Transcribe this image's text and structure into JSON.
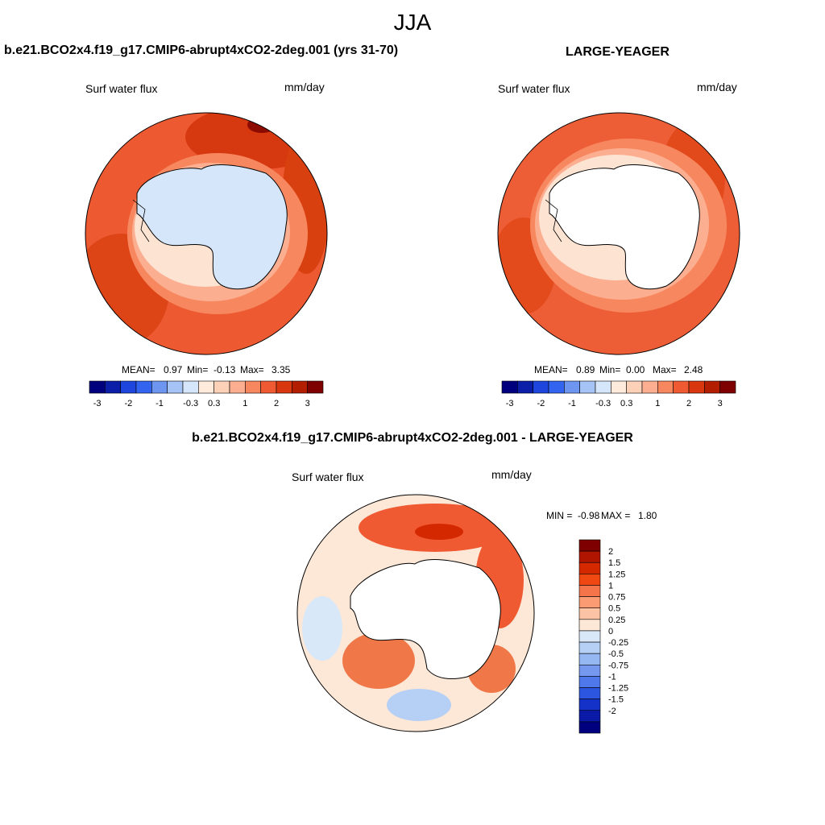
{
  "season": "JJA",
  "panels": [
    {
      "title": "b.e21.BCO2x4.f19_g17.CMIP6-abrupt4xCO2-2deg.001 (yrs 31-70)",
      "variable": "Surf water flux",
      "units": "mm/day",
      "mean_label": "MEAN=",
      "mean": "0.97",
      "min_label": "Min=",
      "min": "-0.13",
      "max_label": "Max=",
      "max": "3.35"
    },
    {
      "title": "LARGE-YEAGER",
      "variable": "Surf water flux",
      "units": "mm/day",
      "mean_label": "MEAN=",
      "mean": "0.89",
      "min_label": "Min=",
      "min": "0.00",
      "max_label": "Max=",
      "max": "2.48"
    },
    {
      "title": "b.e21.BCO2x4.f19_g17.CMIP6-abrupt4xCO2-2deg.001 - LARGE-YEAGER",
      "variable": "Surf water flux",
      "units": "mm/day",
      "min_label": "MIN =",
      "min": "-0.98",
      "max_label": "MAX =",
      "max": "1.80"
    }
  ],
  "colorbar_top": {
    "colors": [
      "#00007f",
      "#0a1ea8",
      "#1e46dc",
      "#3264f0",
      "#6e96f0",
      "#a5c3f5",
      "#d5e6fa",
      "#ffeadb",
      "#fdd0b8",
      "#fcae90",
      "#f7875f",
      "#f05a32",
      "#d9370f",
      "#b31e00",
      "#7f0000"
    ],
    "tick_labels": [
      "-3",
      "-2",
      "-1",
      "-0.3",
      "0.3",
      "1",
      "2",
      "3"
    ]
  },
  "colorbar_diff": {
    "colors": [
      "#7f0000",
      "#b01500",
      "#d42800",
      "#f04812",
      "#f6744a",
      "#fa9b73",
      "#fcc4a4",
      "#fde8d8",
      "#d8e8f8",
      "#b5cff5",
      "#96b8f2",
      "#7499ef",
      "#4f78ea",
      "#2d56e0",
      "#1432c8",
      "#0a1aa6",
      "#00007f"
    ],
    "tick_labels": [
      "2",
      "1.5",
      "1.25",
      "1",
      "0.75",
      "0.5",
      "0.25",
      "0",
      "-0.25",
      "-0.5",
      "-0.75",
      "-1",
      "-1.25",
      "-1.5",
      "-2"
    ]
  },
  "chart_data": {
    "type": "heatmap",
    "projection": "south polar stereographic",
    "maps": [
      {
        "name": "b.e21.BCO2x4.f19_g17.CMIP6-abrupt4xCO2-2deg.001 (yrs 31-70)",
        "mean": 0.97,
        "min": -0.13,
        "max": 3.35,
        "levels": [
          -3,
          -2.5,
          -2,
          -1.5,
          -1,
          -0.5,
          -0.3,
          0,
          0.3,
          0.5,
          1,
          1.5,
          2,
          2.5,
          3
        ]
      },
      {
        "name": "LARGE-YEAGER",
        "mean": 0.89,
        "min": 0.0,
        "max": 2.48,
        "levels": [
          -3,
          -2.5,
          -2,
          -1.5,
          -1,
          -0.5,
          -0.3,
          0,
          0.3,
          0.5,
          1,
          1.5,
          2,
          2.5,
          3
        ]
      },
      {
        "name": "b.e21.BCO2x4.f19_g17.CMIP6-abrupt4xCO2-2deg.001 - LARGE-YEAGER",
        "min": -0.98,
        "max": 1.8,
        "levels": [
          -2,
          -1.5,
          -1.25,
          -1,
          -0.75,
          -0.5,
          -0.25,
          0,
          0.25,
          0.5,
          0.75,
          1,
          1.25,
          1.5,
          2
        ]
      }
    ]
  }
}
